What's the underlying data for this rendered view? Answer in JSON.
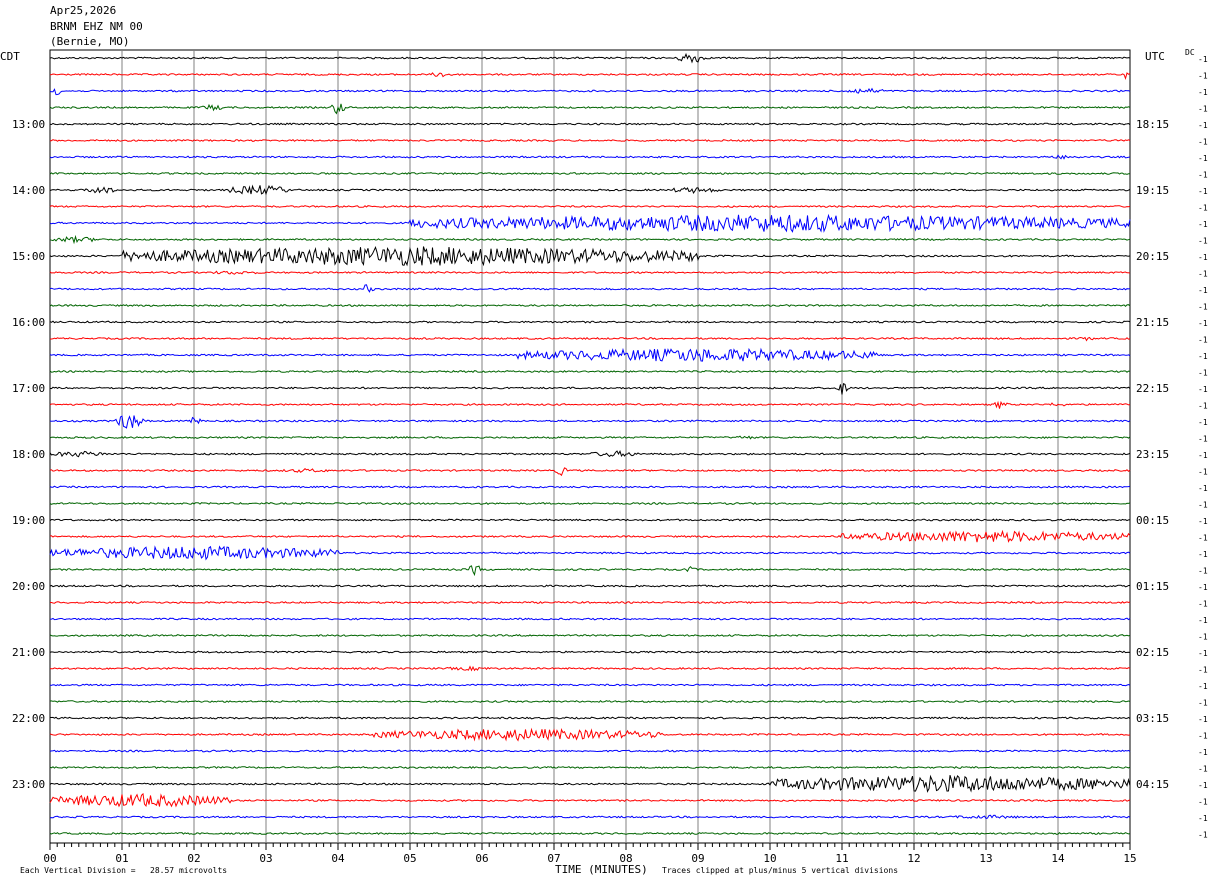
{
  "header": {
    "date": "Apr25,2026",
    "station": "BRNM EHZ NM 00",
    "location": "(Bernie, MO)"
  },
  "left_axis_label": "CDT",
  "right_axis_label": "UTC",
  "dc_label": "DC",
  "footer": {
    "scale_note": "Each Vertical Division =   28.57 microvolts",
    "xlabel": "TIME (MINUTES)",
    "clip_note": "Traces clipped at plus/minus 5 vertical divisions"
  },
  "colors": {
    "cycle": [
      "#000000",
      "#ff0000",
      "#0000ff",
      "#006400"
    ],
    "grid": "#808080"
  },
  "chart_data": {
    "type": "line",
    "xlabel": "TIME (MINUTES)",
    "xlim": [
      0,
      15
    ],
    "x_ticks": [
      "00",
      "01",
      "02",
      "03",
      "04",
      "05",
      "06",
      "07",
      "08",
      "09",
      "10",
      "11",
      "12",
      "13",
      "14",
      "15"
    ],
    "trace_minutes": 15,
    "num_traces": 48,
    "left_hour_labels": [
      "13:00",
      "14:00",
      "15:00",
      "16:00",
      "17:00",
      "18:00",
      "19:00",
      "20:00",
      "21:00",
      "22:00",
      "23:00"
    ],
    "right_hour_labels": [
      "18:15",
      "19:15",
      "20:15",
      "21:15",
      "22:15",
      "23:15",
      "00:15",
      "01:15",
      "02:15",
      "03:15",
      "04:15"
    ],
    "hour_label_trace_index": [
      4,
      8,
      12,
      16,
      20,
      24,
      28,
      32,
      36,
      40,
      44
    ],
    "dc_offsets": [
      "-1",
      "-1",
      "-1",
      "-1",
      "-1",
      "-1",
      "-1",
      "-1",
      "-1",
      "-1",
      "-1",
      "-1",
      "-1",
      "-1",
      "-1",
      "-1",
      "-1",
      "-1",
      "-1",
      "-1",
      "-1",
      "-1",
      "-1",
      "-1",
      "-1",
      "-1",
      "-1",
      "-1",
      "-1",
      "-1",
      "-1",
      "-1",
      "-1",
      "-1",
      "-1",
      "-1",
      "-1",
      "-1",
      "-1",
      "-1",
      "-1",
      "-1",
      "-1",
      "-1",
      "-1",
      "-1",
      "-1",
      "-1"
    ],
    "events": [
      {
        "trace": 0,
        "start": 8.7,
        "end": 9.1,
        "amp": 7,
        "kind": "spike"
      },
      {
        "trace": 1,
        "start": 5.3,
        "end": 5.6,
        "amp": 3,
        "kind": "burst"
      },
      {
        "trace": 1,
        "start": 14.9,
        "end": 15.0,
        "amp": 5,
        "kind": "spike"
      },
      {
        "trace": 2,
        "start": 0.0,
        "end": 0.15,
        "amp": 6,
        "kind": "spike"
      },
      {
        "trace": 2,
        "start": 11.0,
        "end": 11.6,
        "amp": 3,
        "kind": "burst"
      },
      {
        "trace": 3,
        "start": 3.9,
        "end": 4.1,
        "amp": 8,
        "kind": "spike"
      },
      {
        "trace": 3,
        "start": 2.1,
        "end": 2.4,
        "amp": 3,
        "kind": "burst"
      },
      {
        "trace": 6,
        "start": 13.8,
        "end": 14.3,
        "amp": 2,
        "kind": "burst"
      },
      {
        "trace": 8,
        "start": 0.5,
        "end": 0.9,
        "amp": 4,
        "kind": "burst"
      },
      {
        "trace": 8,
        "start": 2.5,
        "end": 3.3,
        "amp": 5,
        "kind": "burst"
      },
      {
        "trace": 8,
        "start": 8.6,
        "end": 9.3,
        "amp": 3,
        "kind": "burst"
      },
      {
        "trace": 10,
        "start": 5.0,
        "end": 15.0,
        "amp": 9,
        "kind": "burst"
      },
      {
        "trace": 11,
        "start": 0.0,
        "end": 0.7,
        "amp": 3,
        "kind": "burst"
      },
      {
        "trace": 12,
        "start": 1.0,
        "end": 9.0,
        "amp": 10,
        "kind": "burst"
      },
      {
        "trace": 13,
        "start": 2.2,
        "end": 2.9,
        "amp": 2,
        "kind": "burst"
      },
      {
        "trace": 14,
        "start": 4.3,
        "end": 4.5,
        "amp": 5,
        "kind": "spike"
      },
      {
        "trace": 17,
        "start": 14.3,
        "end": 14.5,
        "amp": 3,
        "kind": "spike"
      },
      {
        "trace": 18,
        "start": 6.5,
        "end": 11.5,
        "amp": 7,
        "kind": "burst"
      },
      {
        "trace": 20,
        "start": 10.9,
        "end": 11.1,
        "amp": 7,
        "kind": "spike"
      },
      {
        "trace": 21,
        "start": 13.1,
        "end": 13.3,
        "amp": 5,
        "kind": "spike"
      },
      {
        "trace": 21,
        "start": 13.9,
        "end": 14.1,
        "amp": 4,
        "kind": "spike"
      },
      {
        "trace": 22,
        "start": 0.9,
        "end": 1.3,
        "amp": 10,
        "kind": "spike"
      },
      {
        "trace": 22,
        "start": 1.9,
        "end": 2.1,
        "amp": 5,
        "kind": "spike"
      },
      {
        "trace": 23,
        "start": 9.5,
        "end": 9.8,
        "amp": 2,
        "kind": "burst"
      },
      {
        "trace": 24,
        "start": 0.0,
        "end": 0.8,
        "amp": 3,
        "kind": "burst"
      },
      {
        "trace": 24,
        "start": 7.5,
        "end": 8.2,
        "amp": 3,
        "kind": "burst"
      },
      {
        "trace": 25,
        "start": 7.0,
        "end": 7.2,
        "amp": 5,
        "kind": "spike"
      },
      {
        "trace": 25,
        "start": 3.2,
        "end": 3.9,
        "amp": 2,
        "kind": "burst"
      },
      {
        "trace": 29,
        "start": 11.0,
        "end": 15.0,
        "amp": 6,
        "kind": "burst"
      },
      {
        "trace": 30,
        "start": 0.0,
        "end": 4.0,
        "amp": 7,
        "kind": "burst"
      },
      {
        "trace": 31,
        "start": 5.8,
        "end": 6.0,
        "amp": 6,
        "kind": "spike"
      },
      {
        "trace": 31,
        "start": 8.8,
        "end": 9.0,
        "amp": 3,
        "kind": "spike"
      },
      {
        "trace": 37,
        "start": 5.5,
        "end": 6.2,
        "amp": 2,
        "kind": "burst"
      },
      {
        "trace": 41,
        "start": 4.5,
        "end": 8.5,
        "amp": 6,
        "kind": "burst"
      },
      {
        "trace": 44,
        "start": 10.0,
        "end": 15.0,
        "amp": 9,
        "kind": "burst"
      },
      {
        "trace": 45,
        "start": 0.0,
        "end": 2.5,
        "amp": 7,
        "kind": "burst"
      },
      {
        "trace": 46,
        "start": 12.5,
        "end": 13.5,
        "amp": 2,
        "kind": "burst"
      }
    ]
  }
}
